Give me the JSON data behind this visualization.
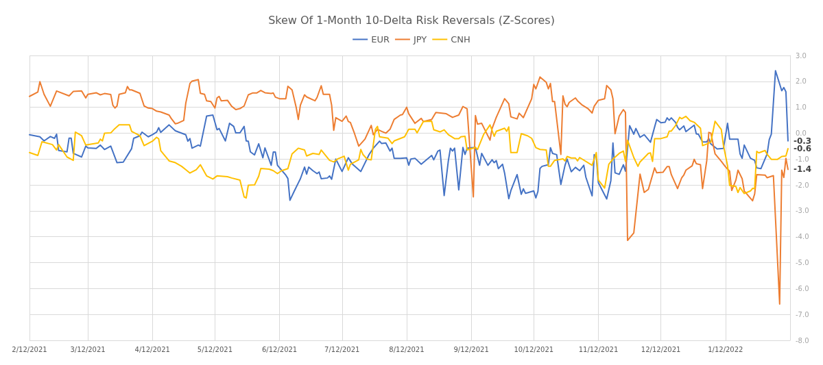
{
  "chart_data": {
    "type": "line",
    "title": "Skew Of 1-Month 10-Delta Risk Reversals (Z-Scores)",
    "xlim": [
      "2021-02-12",
      "2022-02-12"
    ],
    "xticks": [
      {
        "value": "2021-02-12",
        "label": "2/12/2021"
      },
      {
        "value": "2021-03-12",
        "label": "3/12/2021"
      },
      {
        "value": "2021-04-12",
        "label": "4/12/2021"
      },
      {
        "value": "2021-05-12",
        "label": "5/12/2021"
      },
      {
        "value": "2021-06-12",
        "label": "6/12/2021"
      },
      {
        "value": "2021-07-12",
        "label": "7/12/2021"
      },
      {
        "value": "2021-08-12",
        "label": "8/12/2021"
      },
      {
        "value": "2021-09-12",
        "label": "9/12/2021"
      },
      {
        "value": "2021-10-12",
        "label": "10/12/2021"
      },
      {
        "value": "2021-11-12",
        "label": "11/12/2021"
      },
      {
        "value": "2021-12-12",
        "label": "12/12/2021"
      },
      {
        "value": "2022-01-12",
        "label": "1/12/2022"
      }
    ],
    "ylim": [
      -8,
      3
    ],
    "yticks": [
      {
        "value": -8,
        "label": "-8.0"
      },
      {
        "value": -7,
        "label": "-7.0"
      },
      {
        "value": -6,
        "label": "-6.0"
      },
      {
        "value": -5,
        "label": "-5.0"
      },
      {
        "value": -4,
        "label": "-4.0"
      },
      {
        "value": -3,
        "label": "-3.0"
      },
      {
        "value": -2,
        "label": "-2.0"
      },
      {
        "value": -1,
        "label": "-1.0"
      },
      {
        "value": 0,
        "label": "0.0"
      },
      {
        "value": 1,
        "label": "1.0"
      },
      {
        "value": 2,
        "label": "2.0"
      },
      {
        "value": 3,
        "label": "3.0"
      }
    ],
    "grid": true,
    "legend": "top",
    "marker": "none",
    "line_style": "solid",
    "annotations": [
      {
        "text": "-0.3",
        "x": "2022-02-11",
        "y": -0.3
      },
      {
        "text": "-0.6",
        "x": "2022-02-11",
        "y": -0.6
      },
      {
        "text": "-1.4",
        "x": "2022-02-11",
        "y": -1.4
      }
    ],
    "series": [
      {
        "name": "EUR",
        "color": "#4472c4",
        "x": [
          "2021-02-12",
          "2021-02-17",
          "2021-02-19",
          "2021-02-22",
          "2021-02-24",
          "2021-02-25",
          "2021-02-26",
          "2021-03-02",
          "2021-03-03",
          "2021-03-04",
          "2021-03-05",
          "2021-03-09",
          "2021-03-11",
          "2021-03-12",
          "2021-03-16",
          "2021-03-18",
          "2021-03-20",
          "2021-03-23",
          "2021-03-26",
          "2021-03-29",
          "2021-04-02",
          "2021-04-03",
          "2021-04-06",
          "2021-04-07",
          "2021-04-10",
          "2021-04-12",
          "2021-04-14",
          "2021-04-15",
          "2021-04-16",
          "2021-04-20",
          "2021-04-23",
          "2021-04-28",
          "2021-04-29",
          "2021-04-30",
          "2021-05-01",
          "2021-05-04",
          "2021-05-05",
          "2021-05-08",
          "2021-05-11",
          "2021-05-13",
          "2021-05-14",
          "2021-05-17",
          "2021-05-19",
          "2021-05-21",
          "2021-05-22",
          "2021-05-24",
          "2021-05-26",
          "2021-05-27",
          "2021-05-28",
          "2021-05-29",
          "2021-05-31",
          "2021-06-02",
          "2021-06-04",
          "2021-06-05",
          "2021-06-08",
          "2021-06-09",
          "2021-06-10",
          "2021-06-11",
          "2021-06-13",
          "2021-06-15",
          "2021-06-16",
          "2021-06-17",
          "2021-06-19",
          "2021-06-21",
          "2021-06-22",
          "2021-06-24",
          "2021-06-25",
          "2021-06-26",
          "2021-06-28",
          "2021-06-30",
          "2021-07-01",
          "2021-07-02",
          "2021-07-05",
          "2021-07-06",
          "2021-07-07",
          "2021-07-09",
          "2021-07-12",
          "2021-07-15",
          "2021-07-17",
          "2021-07-21",
          "2021-07-25",
          "2021-07-27",
          "2021-07-30",
          "2021-07-31",
          "2021-08-02",
          "2021-08-04",
          "2021-08-05",
          "2021-08-06",
          "2021-08-09",
          "2021-08-12",
          "2021-08-13",
          "2021-08-14",
          "2021-08-16",
          "2021-08-19",
          "2021-08-24",
          "2021-08-25",
          "2021-08-27",
          "2021-08-28",
          "2021-08-30",
          "2021-09-01",
          "2021-09-02",
          "2021-09-03",
          "2021-09-04",
          "2021-09-06",
          "2021-09-08",
          "2021-09-09",
          "2021-09-10",
          "2021-09-11",
          "2021-09-14",
          "2021-09-16",
          "2021-09-17",
          "2021-09-20",
          "2021-09-22",
          "2021-09-23",
          "2021-09-24",
          "2021-09-25",
          "2021-09-27",
          "2021-09-28",
          "2021-09-30",
          "2021-10-01",
          "2021-10-04",
          "2021-10-06",
          "2021-10-07",
          "2021-10-08",
          "2021-10-09",
          "2021-10-12",
          "2021-10-13",
          "2021-10-14",
          "2021-10-15",
          "2021-10-16",
          "2021-10-19",
          "2021-10-20",
          "2021-10-21",
          "2021-10-23",
          "2021-10-25",
          "2021-10-27",
          "2021-10-28",
          "2021-10-30",
          "2021-11-01",
          "2021-11-03",
          "2021-11-05",
          "2021-11-06",
          "2021-11-09",
          "2021-11-10",
          "2021-11-11",
          "2021-11-12",
          "2021-11-16",
          "2021-11-18",
          "2021-11-19",
          "2021-11-20",
          "2021-11-22",
          "2021-11-24",
          "2021-11-25",
          "2021-11-27",
          "2021-11-29",
          "2021-11-30",
          "2021-12-02",
          "2021-12-04",
          "2021-12-07",
          "2021-12-09",
          "2021-12-10",
          "2021-12-12",
          "2021-12-14",
          "2021-12-15",
          "2021-12-16",
          "2021-12-17",
          "2021-12-19",
          "2021-12-20",
          "2021-12-21",
          "2021-12-23",
          "2021-12-24",
          "2021-12-28",
          "2021-12-29",
          "2021-12-30",
          "2022-01-01",
          "2022-01-03",
          "2022-01-04",
          "2022-01-05",
          "2022-01-08",
          "2022-01-11",
          "2022-01-13",
          "2022-01-14",
          "2022-01-18",
          "2022-01-19",
          "2022-01-20",
          "2022-01-21",
          "2022-01-24",
          "2022-01-26",
          "2022-01-27",
          "2022-01-29",
          "2022-02-01",
          "2022-02-02",
          "2022-02-03",
          "2022-02-05",
          "2022-02-08",
          "2022-02-09",
          "2022-02-10",
          "2022-02-11"
        ],
        "values": [
          -0.06,
          -0.14,
          -0.3,
          -0.13,
          -0.2,
          -0.04,
          -0.67,
          -0.72,
          -0.19,
          -0.19,
          -0.78,
          -0.92,
          -0.5,
          -0.57,
          -0.59,
          -0.46,
          -0.63,
          -0.5,
          -1.14,
          -1.12,
          -0.6,
          -0.2,
          -0.1,
          0.04,
          -0.14,
          -0.06,
          0.04,
          0.21,
          0.03,
          0.32,
          0.09,
          -0.06,
          -0.31,
          -0.21,
          -0.58,
          -0.46,
          -0.5,
          0.66,
          0.7,
          0.13,
          0.18,
          -0.3,
          0.38,
          0.26,
          0.01,
          0.01,
          0.26,
          -0.3,
          -0.31,
          -0.72,
          -0.84,
          -0.41,
          -0.95,
          -0.57,
          -1.24,
          -0.73,
          -0.73,
          -1.24,
          -1.43,
          -1.62,
          -1.75,
          -2.59,
          -2.25,
          -1.92,
          -1.76,
          -1.31,
          -1.58,
          -1.31,
          -1.45,
          -1.56,
          -1.5,
          -1.76,
          -1.73,
          -1.65,
          -1.78,
          -1.0,
          -1.48,
          -0.95,
          -1.2,
          -1.48,
          -0.82,
          -0.58,
          -0.31,
          -0.4,
          -0.38,
          -0.69,
          -0.58,
          -0.97,
          -0.97,
          -0.95,
          -1.24,
          -1.0,
          -0.97,
          -1.2,
          -0.86,
          -1.03,
          -0.69,
          -0.65,
          -2.41,
          -1.07,
          -0.58,
          -0.69,
          -0.58,
          -2.19,
          -0.55,
          -0.82,
          -0.58,
          -0.57,
          -0.55,
          -1.24,
          -0.78,
          -1.24,
          -1.03,
          -1.14,
          -1.06,
          -1.37,
          -1.2,
          -1.54,
          -2.53,
          -2.22,
          -1.6,
          -2.36,
          -2.15,
          -2.32,
          -2.3,
          -2.23,
          -2.5,
          -2.25,
          -1.36,
          -1.28,
          -1.22,
          -0.56,
          -0.78,
          -0.83,
          -1.98,
          -1.24,
          -1.0,
          -1.49,
          -1.32,
          -1.45,
          -1.24,
          -1.7,
          -2.42,
          -0.83,
          -0.92,
          -1.91,
          -2.54,
          -1.83,
          -0.38,
          -1.53,
          -1.59,
          -1.22,
          -1.47,
          0.29,
          -0.04,
          0.18,
          -0.16,
          -0.06,
          -0.35,
          0.24,
          0.53,
          0.4,
          0.42,
          0.59,
          0.5,
          0.59,
          0.42,
          0.23,
          0.13,
          0.28,
          0.06,
          0.31,
          -0.03,
          -0.04,
          -0.34,
          -0.34,
          -0.21,
          -0.42,
          -0.61,
          -0.59,
          0.38,
          -0.23,
          -0.23,
          -0.8,
          -0.97,
          -0.46,
          -0.97,
          -1.05,
          -1.34,
          -1.37,
          -0.8,
          -0.25,
          -0.04,
          2.41,
          1.64,
          1.76,
          1.6,
          -0.3
        ]
      },
      {
        "name": "JPY",
        "color": "#ed7d31",
        "x": [
          "2021-02-12",
          "2021-02-16",
          "2021-02-17",
          "2021-02-19",
          "2021-02-22",
          "2021-02-25",
          "2021-03-03",
          "2021-03-05",
          "2021-03-09",
          "2021-03-11",
          "2021-03-12",
          "2021-03-16",
          "2021-03-18",
          "2021-03-20",
          "2021-03-23",
          "2021-03-24",
          "2021-03-25",
          "2021-03-26",
          "2021-03-27",
          "2021-03-30",
          "2021-03-31",
          "2021-04-01",
          "2021-04-02",
          "2021-04-06",
          "2021-04-08",
          "2021-04-10",
          "2021-04-12",
          "2021-04-14",
          "2021-04-16",
          "2021-04-20",
          "2021-04-21",
          "2021-04-23",
          "2021-04-24",
          "2021-04-27",
          "2021-04-28",
          "2021-04-30",
          "2021-05-01",
          "2021-05-04",
          "2021-05-05",
          "2021-05-07",
          "2021-05-08",
          "2021-05-10",
          "2021-05-12",
          "2021-05-13",
          "2021-05-14",
          "2021-05-15",
          "2021-05-18",
          "2021-05-20",
          "2021-05-22",
          "2021-05-24",
          "2021-05-26",
          "2021-05-28",
          "2021-05-30",
          "2021-06-01",
          "2021-06-03",
          "2021-06-05",
          "2021-06-08",
          "2021-06-09",
          "2021-06-10",
          "2021-06-12",
          "2021-06-15",
          "2021-06-16",
          "2021-06-18",
          "2021-06-20",
          "2021-06-21",
          "2021-06-22",
          "2021-06-24",
          "2021-06-25",
          "2021-06-29",
          "2021-06-30",
          "2021-07-02",
          "2021-07-03",
          "2021-07-06",
          "2021-07-07",
          "2021-07-08",
          "2021-07-09",
          "2021-07-12",
          "2021-07-14",
          "2021-07-15",
          "2021-07-16",
          "2021-07-18",
          "2021-07-20",
          "2021-07-23",
          "2021-07-26",
          "2021-07-27",
          "2021-07-29",
          "2021-07-31",
          "2021-08-02",
          "2021-08-04",
          "2021-08-06",
          "2021-08-09",
          "2021-08-10",
          "2021-08-12",
          "2021-08-13",
          "2021-08-16",
          "2021-08-19",
          "2021-08-20",
          "2021-08-24",
          "2021-08-26",
          "2021-08-31",
          "2021-09-03",
          "2021-09-06",
          "2021-09-08",
          "2021-09-10",
          "2021-09-13",
          "2021-09-14",
          "2021-09-15",
          "2021-09-17",
          "2021-09-21",
          "2021-09-22",
          "2021-09-24",
          "2021-09-28",
          "2021-09-30",
          "2021-10-01",
          "2021-10-04",
          "2021-10-05",
          "2021-10-07",
          "2021-10-11",
          "2021-10-12",
          "2021-10-13",
          "2021-10-15",
          "2021-10-18",
          "2021-10-19",
          "2021-10-20",
          "2021-10-21",
          "2021-10-22",
          "2021-10-25",
          "2021-10-26",
          "2021-10-27",
          "2021-10-28",
          "2021-10-29",
          "2021-11-01",
          "2021-11-02",
          "2021-11-04",
          "2021-11-07",
          "2021-11-09",
          "2021-11-10",
          "2021-11-12",
          "2021-11-15",
          "2021-11-16",
          "2021-11-18",
          "2021-11-19",
          "2021-11-20",
          "2021-11-22",
          "2021-11-24",
          "2021-11-25",
          "2021-11-26",
          "2021-11-29",
          "2021-12-02",
          "2021-12-04",
          "2021-12-06",
          "2021-12-09",
          "2021-12-10",
          "2021-12-13",
          "2021-12-15",
          "2021-12-16",
          "2021-12-17",
          "2021-12-20",
          "2021-12-22",
          "2021-12-23",
          "2021-12-24",
          "2021-12-27",
          "2021-12-28",
          "2021-12-29",
          "2021-12-31",
          "2022-01-01",
          "2022-01-03",
          "2022-01-04",
          "2022-01-05",
          "2022-01-07",
          "2022-01-10",
          "2022-01-12",
          "2022-01-14",
          "2022-01-15",
          "2022-01-17",
          "2022-01-18",
          "2022-01-20",
          "2022-01-21",
          "2022-01-25",
          "2022-01-26",
          "2022-01-27",
          "2022-01-31",
          "2022-02-01",
          "2022-02-04",
          "2022-02-07",
          "2022-02-08",
          "2022-02-09",
          "2022-02-10",
          "2022-02-11"
        ],
        "values": [
          1.42,
          1.59,
          1.99,
          1.5,
          1.04,
          1.63,
          1.44,
          1.61,
          1.63,
          1.36,
          1.5,
          1.56,
          1.48,
          1.53,
          1.49,
          1.08,
          0.97,
          1.05,
          1.5,
          1.56,
          1.8,
          1.67,
          1.67,
          1.54,
          1.05,
          0.97,
          0.95,
          0.85,
          0.82,
          0.7,
          0.57,
          0.36,
          0.38,
          0.49,
          1.16,
          1.92,
          2.01,
          2.07,
          1.54,
          1.5,
          1.25,
          1.22,
          0.97,
          1.36,
          1.42,
          1.25,
          1.27,
          1.04,
          0.91,
          0.95,
          1.05,
          1.48,
          1.55,
          1.55,
          1.65,
          1.56,
          1.53,
          1.55,
          1.39,
          1.33,
          1.33,
          1.81,
          1.67,
          0.99,
          0.53,
          1.08,
          1.48,
          1.4,
          1.25,
          1.38,
          1.83,
          1.5,
          1.5,
          1.08,
          0.11,
          0.6,
          0.46,
          0.66,
          0.45,
          0.41,
          -0.02,
          -0.5,
          -0.23,
          0.3,
          -0.06,
          0.15,
          0.07,
          0,
          0.15,
          0.53,
          0.7,
          0.72,
          1.0,
          0.75,
          0.38,
          0.57,
          0.45,
          0.53,
          0.8,
          0.75,
          0.61,
          0.7,
          1.03,
          0.94,
          -2.46,
          0.68,
          0.35,
          0.38,
          -0.27,
          0.18,
          0.61,
          1.33,
          1.14,
          0.63,
          0.55,
          0.77,
          0.6,
          1.33,
          1.88,
          1.71,
          2.17,
          1.96,
          1.71,
          1.92,
          1.22,
          1.22,
          -0.82,
          1.44,
          1.12,
          1.02,
          1.19,
          1.36,
          1.25,
          1.1,
          0.95,
          0.78,
          1.04,
          1.27,
          1.33,
          1.84,
          1.67,
          1.33,
          -0.02,
          0.66,
          0.91,
          0.8,
          -4.14,
          -3.85,
          -1.58,
          -2.29,
          -2.17,
          -1.34,
          -1.53,
          -1.51,
          -1.29,
          -1.29,
          -1.6,
          -2.14,
          -1.72,
          -1.62,
          -1.43,
          -1.26,
          -1.01,
          -1.18,
          -1.22,
          -2.14,
          -1.07,
          0.03,
          0,
          -0.8,
          -1.09,
          -1.3,
          -1.47,
          -2.21,
          -1.81,
          -1.43,
          -1.76,
          -2.23,
          -2.61,
          -2.35,
          -1.6,
          -1.62,
          -1.72,
          -1.64,
          -6.6,
          -1.43,
          -1.71,
          -0.97,
          -1.4
        ]
      },
      {
        "name": "CNH",
        "color": "#ffc000",
        "x": [
          "2021-02-12",
          "2021-02-16",
          "2021-02-18",
          "2021-02-23",
          "2021-02-25",
          "2021-02-26",
          "2021-03-02",
          "2021-03-05",
          "2021-03-06",
          "2021-03-09",
          "2021-03-11",
          "2021-03-17",
          "2021-03-18",
          "2021-03-19",
          "2021-03-20",
          "2021-03-23",
          "2021-03-25",
          "2021-03-27",
          "2021-04-01",
          "2021-04-02",
          "2021-04-06",
          "2021-04-08",
          "2021-04-12",
          "2021-04-14",
          "2021-04-15",
          "2021-04-16",
          "2021-04-20",
          "2021-04-23",
          "2021-04-26",
          "2021-04-28",
          "2021-04-30",
          "2021-05-03",
          "2021-05-05",
          "2021-05-08",
          "2021-05-11",
          "2021-05-13",
          "2021-05-18",
          "2021-05-20",
          "2021-05-24",
          "2021-05-26",
          "2021-05-27",
          "2021-05-28",
          "2021-05-31",
          "2021-06-02",
          "2021-06-03",
          "2021-06-07",
          "2021-06-09",
          "2021-06-11",
          "2021-06-13",
          "2021-06-16",
          "2021-06-18",
          "2021-06-21",
          "2021-06-24",
          "2021-06-25",
          "2021-06-28",
          "2021-07-01",
          "2021-07-02",
          "2021-07-06",
          "2021-07-08",
          "2021-07-10",
          "2021-07-13",
          "2021-07-15",
          "2021-07-16",
          "2021-07-20",
          "2021-07-21",
          "2021-07-22",
          "2021-07-24",
          "2021-07-26",
          "2021-07-28",
          "2021-07-29",
          "2021-07-30",
          "2021-08-03",
          "2021-08-05",
          "2021-08-06",
          "2021-08-11",
          "2021-08-13",
          "2021-08-16",
          "2021-08-17",
          "2021-08-20",
          "2021-08-24",
          "2021-08-25",
          "2021-08-28",
          "2021-08-30",
          "2021-09-01",
          "2021-09-04",
          "2021-09-06",
          "2021-09-07",
          "2021-09-09",
          "2021-09-10",
          "2021-09-14",
          "2021-09-15",
          "2021-09-18",
          "2021-09-21",
          "2021-09-23",
          "2021-09-24",
          "2021-09-28",
          "2021-09-29",
          "2021-09-30",
          "2021-10-01",
          "2021-10-04",
          "2021-10-06",
          "2021-10-09",
          "2021-10-11",
          "2021-10-13",
          "2021-10-15",
          "2021-10-18",
          "2021-10-19",
          "2021-10-20",
          "2021-10-22",
          "2021-10-26",
          "2021-10-27",
          "2021-10-28",
          "2021-10-30",
          "2021-11-01",
          "2021-11-02",
          "2021-11-03",
          "2021-11-09",
          "2021-11-11",
          "2021-11-12",
          "2021-11-15",
          "2021-11-17",
          "2021-11-19",
          "2021-11-22",
          "2021-11-24",
          "2021-11-25",
          "2021-11-26",
          "2021-11-29",
          "2021-12-01",
          "2021-12-02",
          "2021-12-06",
          "2021-12-07",
          "2021-12-08",
          "2021-12-09",
          "2021-12-12",
          "2021-12-15",
          "2021-12-16",
          "2021-12-17",
          "2021-12-19",
          "2021-12-21",
          "2021-12-22",
          "2021-12-24",
          "2021-12-26",
          "2021-12-28",
          "2021-12-31",
          "2022-01-01",
          "2022-01-03",
          "2022-01-05",
          "2022-01-07",
          "2022-01-10",
          "2022-01-11",
          "2022-01-13",
          "2022-01-14",
          "2022-01-17",
          "2022-01-18",
          "2022-01-19",
          "2022-01-21",
          "2022-01-24",
          "2022-01-25",
          "2022-01-26",
          "2022-01-27",
          "2022-01-28",
          "2022-01-31",
          "2022-02-01",
          "2022-02-03",
          "2022-02-06",
          "2022-02-08",
          "2022-02-10",
          "2022-02-11"
        ],
        "values": [
          -0.75,
          -0.86,
          -0.33,
          -0.44,
          -0.65,
          -0.44,
          -0.92,
          -1.05,
          0.04,
          -0.1,
          -0.46,
          -0.38,
          -0.23,
          -0.3,
          0,
          0.01,
          0.18,
          0.32,
          0.32,
          0.07,
          -0.1,
          -0.48,
          -0.31,
          -0.16,
          -0.22,
          -0.68,
          -1.07,
          -1.14,
          -1.28,
          -1.41,
          -1.54,
          -1.41,
          -1.22,
          -1.65,
          -1.77,
          -1.65,
          -1.68,
          -1.73,
          -1.81,
          -2.46,
          -2.5,
          -2.01,
          -2.0,
          -1.66,
          -1.36,
          -1.39,
          -1.45,
          -1.56,
          -1.45,
          -1.37,
          -0.8,
          -0.58,
          -0.65,
          -0.88,
          -0.78,
          -0.82,
          -0.65,
          -1.05,
          -1.11,
          -0.99,
          -0.89,
          -1.43,
          -1.2,
          -1.03,
          -0.63,
          -0.82,
          -1.0,
          -1.03,
          0.15,
          0.26,
          -0.14,
          -0.19,
          -0.4,
          -0.3,
          -0.14,
          0.15,
          0.15,
          0.01,
          0.45,
          0.46,
          0.13,
          0.05,
          0.13,
          -0.06,
          -0.21,
          -0.21,
          -0.14,
          -0.12,
          -0.65,
          -0.55,
          -0.63,
          -0.04,
          0.32,
          -0.12,
          0.07,
          0.19,
          0.07,
          0.24,
          -0.75,
          -0.75,
          -0.02,
          -0.1,
          -0.2,
          -0.56,
          -0.63,
          -0.65,
          -1.28,
          -1.28,
          -1.05,
          -0.99,
          -1.07,
          -0.9,
          -0.96,
          -0.96,
          -1.07,
          -0.94,
          -1.24,
          -0.75,
          -1.81,
          -2.12,
          -1.2,
          -1.0,
          -0.78,
          -0.69,
          -1.09,
          -0.27,
          -0.94,
          -1.28,
          -1.11,
          -0.78,
          -0.76,
          -1.09,
          -0.21,
          -0.21,
          -0.14,
          0.08,
          0.08,
          0.29,
          0.61,
          0.56,
          0.65,
          0.48,
          0.42,
          0.19,
          -0.48,
          -0.42,
          -0.34,
          0.46,
          0.14,
          -0.46,
          -1.26,
          -2.02,
          -2.06,
          -2.29,
          -2.1,
          -2.33,
          -2.23,
          -2.13,
          -2.14,
          -0.7,
          -0.76,
          -0.67,
          -0.82,
          -1.01,
          -1.01,
          -0.9,
          -0.88,
          -0.6
        ]
      }
    ]
  }
}
